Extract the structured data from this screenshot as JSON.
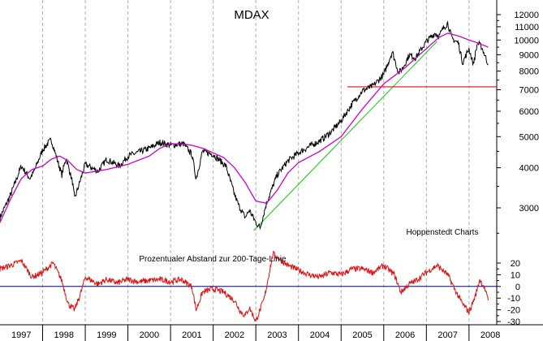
{
  "chart_data": [
    {
      "type": "line",
      "title": "MDAX",
      "annotation": "Hoppenstedt Charts",
      "yscale": "log",
      "ylim": [
        2300,
        12800
      ],
      "yticks": [
        3000,
        4000,
        5000,
        6000,
        7000,
        8000,
        9000,
        10000,
        11000,
        12000
      ],
      "ytick_labels": [
        "3000",
        "4000",
        "5000",
        "6000",
        "7000",
        "8000",
        "9000",
        "10000",
        "11000",
        "12000"
      ],
      "xlim": [
        1997.0,
        2008.65
      ],
      "x_tick_labels": [
        "1997",
        "1998",
        "1999",
        "2000",
        "2001",
        "2002",
        "2003",
        "2004",
        "2005",
        "2006",
        "2007",
        "2008"
      ],
      "grid": "vertical dashed at year boundaries",
      "colors": {
        "index": "#000000",
        "ma200": "#cc00cc",
        "trendline": "#22cc22",
        "support": "#dd1111"
      },
      "series": [
        {
          "x": [
            1997.0,
            1997.25,
            1997.5,
            1997.7,
            1997.8,
            1998.0,
            1998.2,
            1998.45,
            1998.55,
            1998.7,
            1998.75,
            1999.0,
            1999.3,
            1999.5,
            1999.8,
            2000.0,
            2000.3,
            2000.5,
            2000.75,
            2001.0,
            2001.3,
            2001.5,
            2001.6,
            2001.75,
            2002.0,
            2002.3,
            2002.5,
            2002.6,
            2002.75,
            2002.85,
            2003.0,
            2003.1,
            2003.25,
            2003.5,
            2003.75,
            2004.0,
            2004.3,
            2004.5,
            2004.75,
            2005.0,
            2005.25,
            2005.5,
            2005.75,
            2006.0,
            2006.2,
            2006.35,
            2006.45,
            2006.6,
            2006.75,
            2007.0,
            2007.2,
            2007.3,
            2007.4,
            2007.5,
            2007.6,
            2007.75,
            2007.85,
            2008.0,
            2008.1,
            2008.2,
            2008.3,
            2008.45
          ],
          "values": [
            2800,
            3300,
            4050,
            3700,
            3900,
            4550,
            4900,
            3800,
            4300,
            3600,
            3200,
            4100,
            3900,
            4250,
            4050,
            4350,
            4500,
            4600,
            4800,
            4700,
            4750,
            4400,
            3700,
            4500,
            4400,
            4050,
            3300,
            3050,
            2800,
            2950,
            2700,
            2600,
            3100,
            3800,
            4200,
            4450,
            4700,
            4850,
            5150,
            5600,
            6300,
            6950,
            7200,
            7800,
            9200,
            7900,
            8200,
            9000,
            8800,
            9900,
            10500,
            10300,
            10900,
            11300,
            10100,
            9800,
            8500,
            9400,
            8400,
            9800,
            9500,
            8400
          ]
        },
        {
          "x": [
            1997.0,
            1997.25,
            1997.5,
            1997.75,
            1998.0,
            1998.2,
            1998.4,
            1998.6,
            1998.8,
            1999.0,
            1999.5,
            2000.0,
            2000.5,
            2000.75,
            2001.0,
            2001.25,
            2001.5,
            2001.75,
            2002.0,
            2002.25,
            2002.5,
            2002.75,
            2003.0,
            2003.25,
            2003.5,
            2003.75,
            2004.0,
            2004.5,
            2005.0,
            2005.5,
            2006.0,
            2006.5,
            2007.0,
            2007.3,
            2007.5,
            2007.75,
            2008.0,
            2008.2,
            2008.45
          ],
          "values": [
            2700,
            3200,
            3700,
            3950,
            4050,
            4250,
            4350,
            4200,
            3950,
            3850,
            3950,
            4100,
            4350,
            4600,
            4750,
            4750,
            4700,
            4600,
            4450,
            4300,
            4000,
            3600,
            3150,
            3100,
            3400,
            3850,
            4150,
            4500,
            5000,
            6100,
            7300,
            8200,
            9400,
            10200,
            10500,
            10300,
            10000,
            9800,
            9500
          ]
        }
      ],
      "lines": [
        {
          "name": "trendline",
          "x": [
            2002.95,
            2007.25
          ],
          "values": [
            2550,
            9900
          ]
        },
        {
          "name": "support",
          "x": [
            2005.15,
            2008.65
          ],
          "values": [
            7150,
            7150
          ]
        }
      ]
    },
    {
      "type": "line",
      "title": "Prozentualer Abstand zur 200-Tage-Linie",
      "ylim": [
        -35,
        30
      ],
      "yticks": [
        20,
        10,
        0,
        -10,
        -20,
        -30
      ],
      "ytick_labels": [
        "20",
        "10",
        "0",
        "-10",
        "-20",
        "-30"
      ],
      "xlim": [
        1997.0,
        2008.65
      ],
      "colors": {
        "deviation": "#dd1111",
        "zero_line": "#000080"
      },
      "series": [
        {
          "x": [
            1997.0,
            1997.25,
            1997.5,
            1997.75,
            1998.0,
            1998.25,
            1998.45,
            1998.6,
            1998.75,
            1998.9,
            1999.0,
            1999.3,
            1999.5,
            1999.75,
            2000.0,
            2000.25,
            2000.5,
            2000.75,
            2001.0,
            2001.25,
            2001.5,
            2001.6,
            2001.75,
            2002.0,
            2002.25,
            2002.5,
            2002.65,
            2002.75,
            2002.85,
            2003.0,
            2003.2,
            2003.4,
            2003.6,
            2003.75,
            2004.0,
            2004.25,
            2004.5,
            2004.75,
            2005.0,
            2005.25,
            2005.5,
            2005.75,
            2006.0,
            2006.25,
            2006.4,
            2006.6,
            2006.75,
            2007.0,
            2007.25,
            2007.5,
            2007.7,
            2007.85,
            2008.0,
            2008.15,
            2008.25,
            2008.35,
            2008.45
          ],
          "values": [
            15,
            18,
            22,
            8,
            12,
            20,
            5,
            -15,
            -20,
            -5,
            8,
            2,
            6,
            3,
            6,
            4,
            5,
            6,
            4,
            6,
            0,
            -20,
            -5,
            -2,
            -5,
            -12,
            -22,
            -25,
            -18,
            -30,
            -10,
            28,
            22,
            18,
            14,
            10,
            8,
            12,
            10,
            15,
            15,
            12,
            18,
            10,
            -5,
            2,
            5,
            12,
            18,
            10,
            -5,
            -15,
            -22,
            -8,
            6,
            0,
            -12
          ]
        }
      ]
    }
  ]
}
